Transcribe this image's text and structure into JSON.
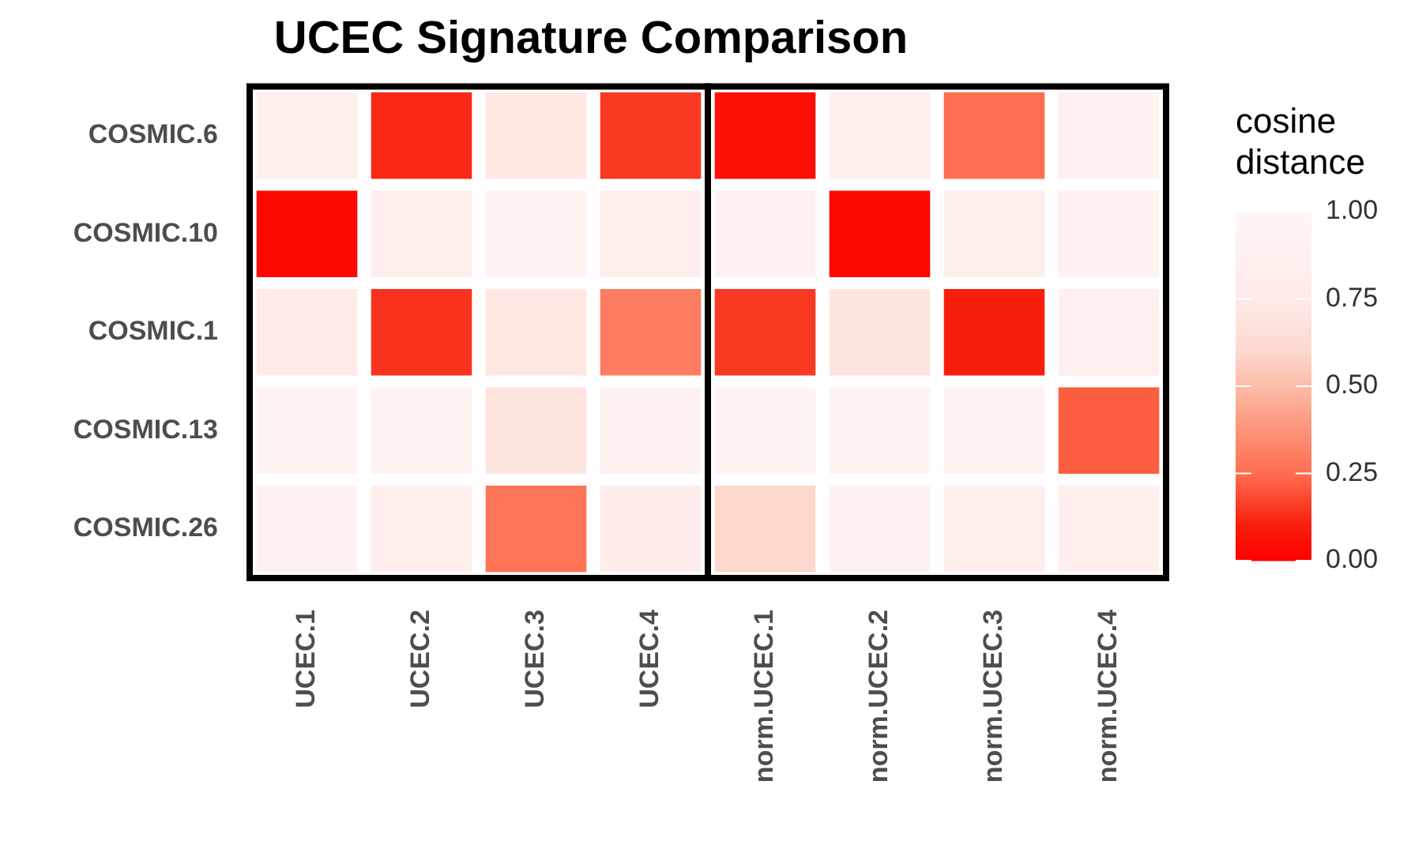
{
  "chart_data": {
    "type": "heatmap",
    "title": "UCEC Signature Comparison",
    "clabel": "cosine distance",
    "categories": [
      "UCEC.1",
      "UCEC.2",
      "UCEC.3",
      "UCEC.4",
      "norm.UCEC.1",
      "norm.UCEC.2",
      "norm.UCEC.3",
      "norm.UCEC.4"
    ],
    "y_categories": [
      "COSMIC.6",
      "COSMIC.10",
      "COSMIC.1",
      "COSMIC.13",
      "COSMIC.26"
    ],
    "cells": [
      [
        0.85,
        0.12,
        0.72,
        0.15,
        0.05,
        0.85,
        0.25,
        0.9
      ],
      [
        0.03,
        0.85,
        0.92,
        0.85,
        0.9,
        0.03,
        0.85,
        0.9
      ],
      [
        0.75,
        0.14,
        0.72,
        0.3,
        0.15,
        0.7,
        0.1,
        0.88
      ],
      [
        0.93,
        0.93,
        0.7,
        0.9,
        0.95,
        0.93,
        0.93,
        0.22
      ],
      [
        0.9,
        0.85,
        0.27,
        0.8,
        0.6,
        0.9,
        0.85,
        0.85
      ]
    ],
    "clim": [
      0,
      1
    ],
    "cticks": [
      {
        "value": 0,
        "label": "0.00"
      },
      {
        "value": 0.25,
        "label": "0.25"
      },
      {
        "value": 0.5,
        "label": "0.50"
      },
      {
        "value": 0.75,
        "label": "0.75"
      },
      {
        "value": 1,
        "label": "1.00"
      }
    ]
  }
}
